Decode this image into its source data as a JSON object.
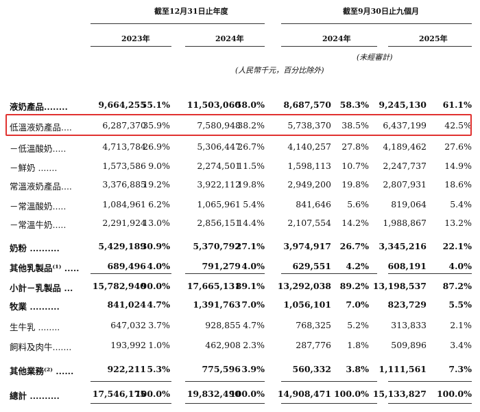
{
  "header": {
    "group1_title": "截至12月31日止年度",
    "group2_title": "截至9月30日止九個月",
    "col_years": [
      "2023年",
      "2024年",
      "2024年",
      "2025年"
    ],
    "unaudited": "(未經審計)",
    "units_note": "(人民幣千元，百分比除外)"
  },
  "rows": [
    {
      "label": "液奶產品........",
      "bold": true,
      "values": [
        "9,664,255",
        "55.1%",
        "11,503,060",
        "58.0%",
        "8,687,570",
        "58.3%",
        "9,245,130",
        "61.1%"
      ]
    },
    {
      "label": "低溫液奶產品....",
      "bold": false,
      "values": [
        "6,287,370",
        "35.9%",
        "7,580,948",
        "38.2%",
        "5,738,370",
        "38.5%",
        "6,437,199",
        "42.5%"
      ]
    },
    {
      "label": "  －低溫酸奶.....",
      "bold": false,
      "values": [
        "4,713,784",
        "26.9%",
        "5,306,447",
        "26.7%",
        "4,140,257",
        "27.8%",
        "4,189,462",
        "27.6%"
      ]
    },
    {
      "label": "  －鮮奶 .......",
      "bold": false,
      "values": [
        "1,573,586",
        "9.0%",
        "2,274,501",
        "11.5%",
        "1,598,113",
        "10.7%",
        "2,247,737",
        "14.9%"
      ]
    },
    {
      "label": "常溫液奶產品....",
      "bold": false,
      "values": [
        "3,376,885",
        "19.2%",
        "3,922,112",
        "19.8%",
        "2,949,200",
        "19.8%",
        "2,807,931",
        "18.6%"
      ]
    },
    {
      "label": "  －常溫酸奶.....",
      "bold": false,
      "values": [
        "1,084,961",
        "6.2%",
        "1,065,961",
        "5.4%",
        "841,646",
        "5.6%",
        "819,064",
        "5.4%"
      ]
    },
    {
      "label": "  －常溫牛奶.....",
      "bold": false,
      "values": [
        "2,291,924",
        "13.0%",
        "2,856,151",
        "14.4%",
        "2,107,554",
        "14.2%",
        "1,988,867",
        "13.2%"
      ]
    },
    {
      "label": "奶粉 ..........",
      "bold": true,
      "values": [
        "5,429,189",
        "30.9%",
        "5,370,792",
        "27.1%",
        "3,974,917",
        "26.7%",
        "3,345,216",
        "22.1%"
      ]
    },
    {
      "label": "其他乳製品⁽¹⁾ .....",
      "bold": true,
      "values": [
        "689,496",
        "4.0%",
        "791,279",
        "4.0%",
        "629,551",
        "4.2%",
        "608,191",
        "4.0%"
      ]
    },
    {
      "label": "小計－乳製品 ...",
      "bold": true,
      "values": [
        "15,782,940",
        "90.0%",
        "17,665,131",
        "89.1%",
        "13,292,038",
        "89.2%",
        "13,198,537",
        "87.2%"
      ]
    },
    {
      "label": "牧業 ..........",
      "bold": true,
      "values": [
        "841,024",
        "4.7%",
        "1,391,763",
        "7.0%",
        "1,056,101",
        "7.0%",
        "823,729",
        "5.5%"
      ]
    },
    {
      "label": "生牛乳 ........",
      "bold": false,
      "values": [
        "647,032",
        "3.7%",
        "928,855",
        "4.7%",
        "768,325",
        "5.2%",
        "313,833",
        "2.1%"
      ]
    },
    {
      "label": "飼料及肉牛.......",
      "bold": false,
      "values": [
        "193,992",
        "1.0%",
        "462,908",
        "2.3%",
        "287,776",
        "1.8%",
        "509,896",
        "3.4%"
      ]
    },
    {
      "label": "其他業務⁽²⁾ ......",
      "bold": true,
      "values": [
        "922,211",
        "5.3%",
        "775,596",
        "3.9%",
        "560,332",
        "3.8%",
        "1,111,561",
        "7.3%"
      ]
    },
    {
      "label": "總計 ..........",
      "bold": true,
      "values": [
        "17,546,175",
        "100.0%",
        "19,832,490",
        "100.0%",
        "14,908,471",
        "100.0%",
        "15,133,827",
        "100.0%"
      ]
    }
  ]
}
